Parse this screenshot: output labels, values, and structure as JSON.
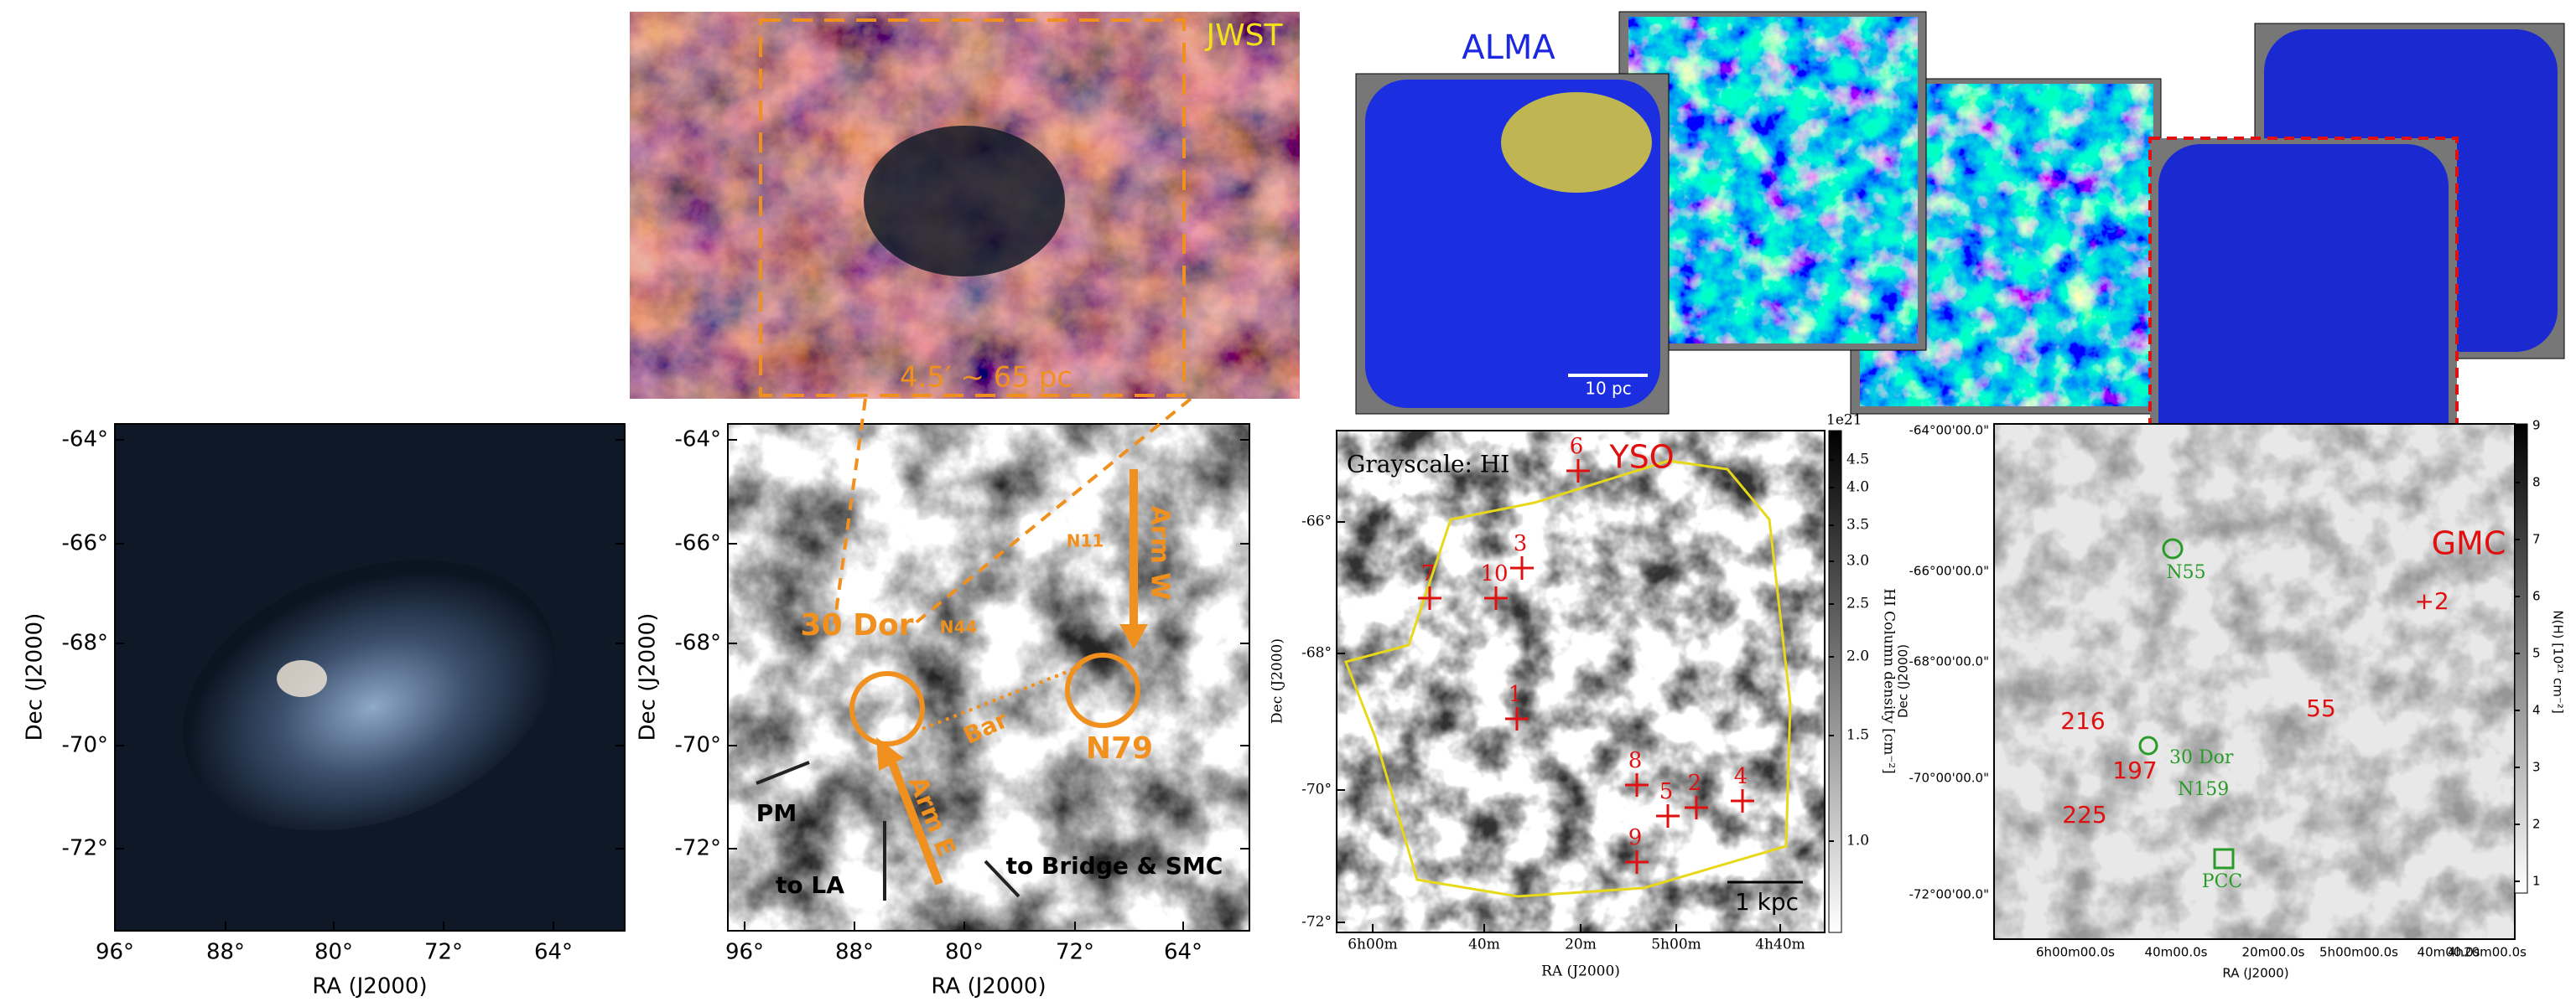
{
  "panel_a": {
    "x_label": "RA (J2000)",
    "y_label": "Dec (J2000)",
    "x_ticks": [
      "96°",
      "88°",
      "80°",
      "72°",
      "64°"
    ],
    "y_ticks": [
      "-64°",
      "-66°",
      "-68°",
      "-70°",
      "-72°"
    ]
  },
  "panel_b": {
    "x_label": "RA (J2000)",
    "y_label": "Dec (J2000)",
    "x_ticks": [
      "96°",
      "88°",
      "80°",
      "72°",
      "64°"
    ],
    "y_ticks": [
      "-64°",
      "-66°",
      "-68°",
      "-70°",
      "-72°"
    ],
    "labels": {
      "dor30": "30 Dor",
      "n44": "N44",
      "n11": "N11",
      "n79": "N79",
      "bar": "Bar",
      "arm_e": "Arm E",
      "arm_w": "Arm W",
      "pm": "PM",
      "to_la": "to LA",
      "to_bridge": "to Bridge & SMC"
    }
  },
  "jwst": {
    "label": "JWST",
    "scale": "4.5′ ~ 65 pc"
  },
  "alma": {
    "label": "ALMA",
    "scale": "10 pc"
  },
  "panel_c": {
    "legend": "Grayscale: HI",
    "tag": "YSO",
    "scale": "1 kpc",
    "x_label": "RA (J2000)",
    "y_label": "Dec (J2000)",
    "x_ticks": [
      "6h00m",
      "40m",
      "20m",
      "5h00m",
      "4h40m"
    ],
    "y_ticks": [
      "-66°",
      "-68°",
      "-70°",
      "-72°"
    ],
    "colorbar_label": "HI Column density [cm⁻²]",
    "colorbar_exponent": "1e21",
    "colorbar_ticks": [
      "4.5",
      "4.0",
      "3.5",
      "3.0",
      "2.5",
      "2.0",
      "1.5",
      "1.0"
    ],
    "markers": [
      "6",
      "3",
      "10",
      "7",
      "1",
      "8",
      "5",
      "2",
      "4",
      "9"
    ]
  },
  "panel_d": {
    "tag": "GMC",
    "x_label": "RA (J2000)",
    "y_label": "Dec (J2000)",
    "x_ticks": [
      "6h00m00.0s",
      "40m00.0s",
      "20m00.0s",
      "5h00m00.0s",
      "40m00.0s",
      "4h20m00.0s"
    ],
    "y_ticks": [
      "-64°00'00.0\"",
      "-66°00'00.0\"",
      "-68°00'00.0\"",
      "-70°00'00.0\"",
      "-72°00'00.0\""
    ],
    "colorbar_label": "N(H) [10²¹ cm⁻²]",
    "colorbar_ticks": [
      "9",
      "8",
      "7",
      "6",
      "5",
      "4",
      "3",
      "2",
      "1"
    ],
    "regions": [
      "N55",
      "30 Dor",
      "N159",
      "PCC"
    ],
    "gmc_ids": [
      "+2",
      "55",
      "216",
      "197",
      "225"
    ]
  }
}
